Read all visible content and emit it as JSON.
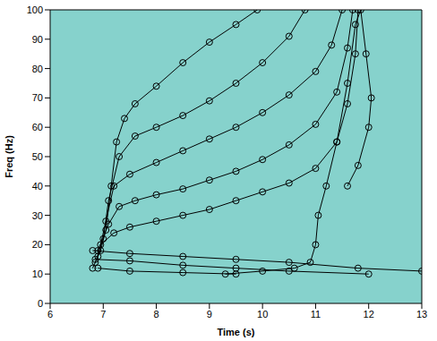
{
  "chart_data": {
    "type": "scatter",
    "x_label": "Time (s)",
    "y_label": "Freq (Hz)",
    "xlim": [
      6,
      13
    ],
    "xticks": [
      6,
      7,
      8,
      9,
      10,
      11,
      12,
      13
    ],
    "ylim": [
      0,
      100
    ],
    "yticks": [
      0,
      10,
      20,
      30,
      40,
      50,
      60,
      70,
      80,
      90,
      100
    ],
    "grid": false,
    "marker": "circle",
    "line_style": "solid",
    "series": [
      {
        "color": "#000000",
        "x": [
          6.8,
          6.95,
          7.05,
          7.15,
          7.25,
          7.4,
          7.6,
          8.0,
          8.5,
          9.0,
          9.5,
          9.9
        ],
        "values": [
          12,
          18,
          25,
          40,
          55,
          63,
          68,
          74,
          82,
          89,
          95,
          100
        ]
      },
      {
        "color": "#000000",
        "x": [
          6.85,
          7.0,
          7.1,
          7.3,
          7.6,
          8.0,
          8.5,
          9.0,
          9.5,
          10.0,
          10.5,
          10.8
        ],
        "values": [
          14,
          22,
          35,
          50,
          57,
          60,
          64,
          69,
          75,
          82,
          91,
          100
        ]
      },
      {
        "color": "#000000",
        "x": [
          6.9,
          7.05,
          7.2,
          7.5,
          8.0,
          8.5,
          9.0,
          9.5,
          10.0,
          10.5,
          11.0,
          11.3,
          11.5
        ],
        "values": [
          16,
          28,
          40,
          44,
          48,
          52,
          56,
          60,
          65,
          71,
          79,
          88,
          100
        ]
      },
      {
        "color": "#000000",
        "x": [
          6.9,
          7.1,
          7.3,
          7.6,
          8.0,
          8.5,
          9.0,
          9.5,
          10.0,
          10.5,
          11.0,
          11.4,
          11.6,
          11.7
        ],
        "values": [
          18,
          27,
          33,
          35,
          37,
          39,
          42,
          45,
          49,
          54,
          61,
          72,
          87,
          100
        ]
      },
      {
        "color": "#000000",
        "x": [
          6.95,
          7.2,
          7.5,
          8.0,
          8.5,
          9.0,
          9.5,
          10.0,
          10.5,
          11.0,
          11.4,
          11.6,
          11.75,
          11.8
        ],
        "values": [
          20,
          24,
          26,
          28,
          30,
          32,
          35,
          38,
          41,
          46,
          55,
          68,
          85,
          100
        ]
      },
      {
        "color": "#000000",
        "x": [
          9.3,
          10.0,
          10.6,
          10.9,
          11.0,
          11.05,
          11.2,
          11.4,
          11.6,
          11.75,
          11.85,
          11.95,
          12.05,
          12.0,
          11.8,
          11.6
        ],
        "values": [
          10,
          11,
          12,
          14,
          20,
          30,
          40,
          55,
          75,
          95,
          100,
          85,
          70,
          60,
          47,
          40
        ]
      },
      {
        "color": "#000000",
        "x": [
          6.8,
          7.5,
          8.5,
          9.5,
          10.5,
          11.8,
          13.0
        ],
        "values": [
          18,
          17,
          16,
          15,
          14,
          12,
          11
        ]
      },
      {
        "color": "#000000",
        "x": [
          6.85,
          7.5,
          8.5,
          9.5,
          10.5,
          12.0
        ],
        "values": [
          15,
          14.5,
          13,
          12,
          11,
          10
        ]
      },
      {
        "color": "#000000",
        "x": [
          6.9,
          7.5,
          8.5,
          9.5
        ],
        "values": [
          12,
          11,
          10.5,
          10
        ]
      }
    ]
  }
}
